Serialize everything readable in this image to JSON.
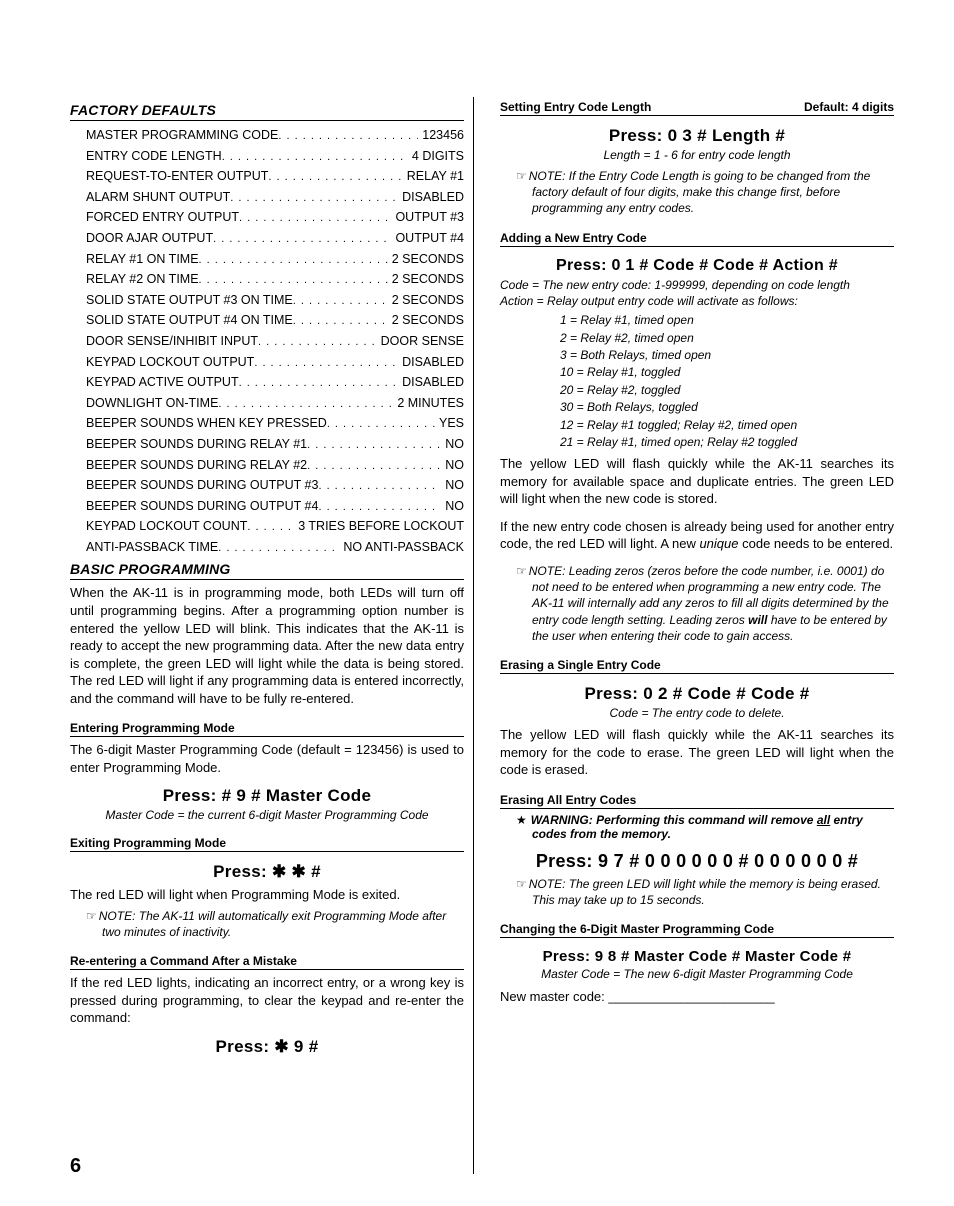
{
  "page_number": "6",
  "left": {
    "factory_defaults_title": "FACTORY DEFAULTS",
    "defaults": [
      {
        "label": "MASTER PROGRAMMING CODE",
        "value": "123456"
      },
      {
        "label": "ENTRY CODE LENGTH",
        "value": "4 DIGITS"
      },
      {
        "label": "REQUEST-TO-ENTER OUTPUT",
        "value": "RELAY #1"
      },
      {
        "label": "ALARM SHUNT OUTPUT",
        "value": "DISABLED"
      },
      {
        "label": "FORCED ENTRY OUTPUT",
        "value": "OUTPUT #3"
      },
      {
        "label": "DOOR AJAR OUTPUT",
        "value": "OUTPUT #4"
      },
      {
        "label": "RELAY #1 ON TIME",
        "value": "2 SECONDS"
      },
      {
        "label": "RELAY #2 ON TIME",
        "value": "2 SECONDS"
      },
      {
        "label": "SOLID STATE OUTPUT #3 ON TIME",
        "value": "2 SECONDS"
      },
      {
        "label": "SOLID STATE OUTPUT #4 ON TIME",
        "value": "2 SECONDS"
      },
      {
        "label": "DOOR SENSE/INHIBIT INPUT",
        "value": "DOOR SENSE"
      },
      {
        "label": "KEYPAD LOCKOUT OUTPUT",
        "value": "DISABLED"
      },
      {
        "label": "KEYPAD ACTIVE OUTPUT",
        "value": "DISABLED"
      },
      {
        "label": "DOWNLIGHT ON-TIME",
        "value": "2 MINUTES"
      },
      {
        "label": "BEEPER SOUNDS WHEN KEY PRESSED",
        "value": "YES"
      },
      {
        "label": "BEEPER SOUNDS DURING RELAY #1",
        "value": "NO"
      },
      {
        "label": "BEEPER SOUNDS DURING RELAY #2",
        "value": "NO"
      },
      {
        "label": "BEEPER SOUNDS DURING OUTPUT #3",
        "value": "NO"
      },
      {
        "label": "BEEPER SOUNDS DURING OUTPUT #4",
        "value": "NO"
      },
      {
        "label": "KEYPAD LOCKOUT COUNT",
        "value": "3 TRIES BEFORE LOCKOUT"
      },
      {
        "label": "ANTI-PASSBACK TIME",
        "value": "NO ANTI-PASSBACK"
      }
    ],
    "basic_title": "BASIC PROGRAMMING",
    "basic_intro": "When the AK-11 is in programming mode, both LEDs will turn off until programming begins. After a programming option number is entered the yellow LED will blink. This indicates that the AK-11 is ready to accept the new programming data. After the new data entry is complete, the green LED will light while the data is being stored. The red LED will light if any programming data is entered incorrectly, and the command will have to be fully re-entered.",
    "enter_h": "Entering Programming Mode",
    "enter_p": "The 6-digit Master Programming Code (default = 123456) is used to enter Programming Mode.",
    "enter_press": "Press:  # 9 # Master Code",
    "enter_cap": "Master Code = the current 6-digit Master Programming Code",
    "exit_h": "Exiting Programming Mode",
    "exit_press": "Press:  ✱ ✱ #",
    "exit_p": "The red LED will light when Programming Mode is exited.",
    "exit_note": "NOTE: The AK-11 will automatically exit Programming Mode after two minutes of inactivity.",
    "reenter_h": "Re-entering a Command After a Mistake",
    "reenter_p": "If the red LED lights, indicating an incorrect entry, or a wrong key is pressed during programming, to clear the keypad and re-enter the command:",
    "reenter_press": "Press:  ✱  9  #"
  },
  "right": {
    "len_h_left": "Setting Entry Code Length",
    "len_h_right": "Default: 4 digits",
    "len_press": "Press:  0 3 # Length #",
    "len_cap": "Length = 1 - 6 for entry code length",
    "len_note": "NOTE: If the Entry Code Length is going to be changed from the factory default of four digits, make this change first, before programming any entry codes.",
    "add_h": "Adding a New Entry Code",
    "add_press": "Press:  0 1 # Code # Code # Action #",
    "add_cap1": "Code = The new entry code: 1-999999, depending on code length",
    "add_cap2": "Action = Relay output entry code will activate as follows:",
    "actions": [
      "1 = Relay #1, timed open",
      "2 = Relay #2, timed open",
      "3 = Both Relays, timed open",
      "10 = Relay #1, toggled",
      "20 = Relay #2, toggled",
      "30 = Both Relays, toggled",
      "12 = Relay #1 toggled; Relay #2, timed open",
      "21 = Relay #1, timed open; Relay #2 toggled"
    ],
    "add_p1": "The yellow LED will flash quickly while the AK-11 searches its memory for available space and duplicate entries. The green LED will light when the new code is stored.",
    "add_p2_a": "If the new entry code chosen is already being used for another entry code, the red LED will light. A new ",
    "add_p2_b": "unique",
    "add_p2_c": " code needs to be entered.",
    "add_note_a": "NOTE: Leading zeros (zeros before the code number, i.e. 0001) do not need to be entered when programming a new entry code. The AK-11 will internally add any zeros to fill all digits determined by the entry code length setting. Leading zeros ",
    "add_note_b": "will",
    "add_note_c": " have to be entered by the user when entering their code to gain access.",
    "erase1_h": "Erasing a Single Entry Code",
    "erase1_press": "Press:  0 2 # Code # Code #",
    "erase1_cap": "Code = The entry code to delete.",
    "erase1_p": "The yellow LED will flash quickly while the AK-11 searches its memory for the code to erase. The green LED will light when the code is erased.",
    "eraseall_h": "Erasing All Entry Codes",
    "eraseall_warn_a": "WARNING: Performing this command will remove ",
    "eraseall_warn_b": "all",
    "eraseall_warn_c": " entry codes from the memory.",
    "eraseall_press": "Press:  9 7 # 0 0 0 0 0 0 # 0 0 0 0 0 0 #",
    "eraseall_note": "NOTE: The green LED will light while the memory is being erased. This may take up to 15 seconds.",
    "chg_h": "Changing the 6-Digit Master Programming Code",
    "chg_press": "Press:  9 8 # Master Code # Master Code #",
    "chg_cap": "Master Code = The new 6-digit Master Programming Code",
    "chg_fill": "New master code: _______________________"
  }
}
